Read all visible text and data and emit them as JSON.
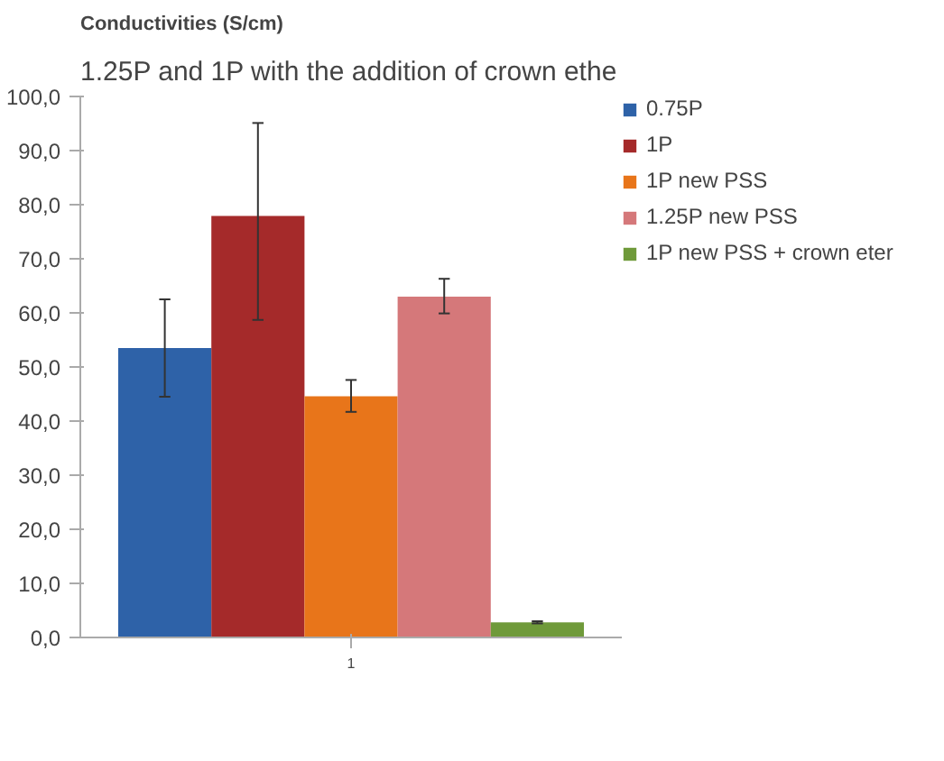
{
  "chart_data": {
    "type": "bar",
    "title": "1.25P and 1P with the addition of crown ethe",
    "ylabel": "Conductivities (S/cm)",
    "categories": [
      "1"
    ],
    "series": [
      {
        "name": "0.75P",
        "color": "#2e62a8",
        "values": [
          53.5
        ],
        "errors": [
          [
            44.5,
            62.5
          ]
        ]
      },
      {
        "name": "1P",
        "color": "#a52a2a",
        "values": [
          77.9
        ],
        "errors": [
          [
            58.7,
            95.1
          ]
        ]
      },
      {
        "name": "1P new PSS",
        "color": "#e8751a",
        "values": [
          44.6
        ],
        "errors": [
          [
            41.7,
            47.6
          ]
        ]
      },
      {
        "name": "1.25P new PSS",
        "color": "#d5787a",
        "values": [
          63.0
        ],
        "errors": [
          [
            59.9,
            66.3
          ]
        ]
      },
      {
        "name": "1P new PSS + crown eter",
        "color": "#6f9a3a",
        "values": [
          2.8
        ],
        "errors": [
          [
            2.6,
            3.0
          ]
        ]
      }
    ],
    "ylim": [
      0,
      100
    ],
    "yticks": [
      {
        "value": 0,
        "label": "0,0"
      },
      {
        "value": 10,
        "label": "10,0"
      },
      {
        "value": 20,
        "label": "20,0"
      },
      {
        "value": 30,
        "label": "30,0"
      },
      {
        "value": 40,
        "label": "40,0"
      },
      {
        "value": 50,
        "label": "50,0"
      },
      {
        "value": 60,
        "label": "60,0"
      },
      {
        "value": 70,
        "label": "70,0"
      },
      {
        "value": 80,
        "label": "80,0"
      },
      {
        "value": 90,
        "label": "90,0"
      },
      {
        "value": 100,
        "label": "100,0"
      }
    ],
    "grid": false,
    "legend": "right"
  }
}
